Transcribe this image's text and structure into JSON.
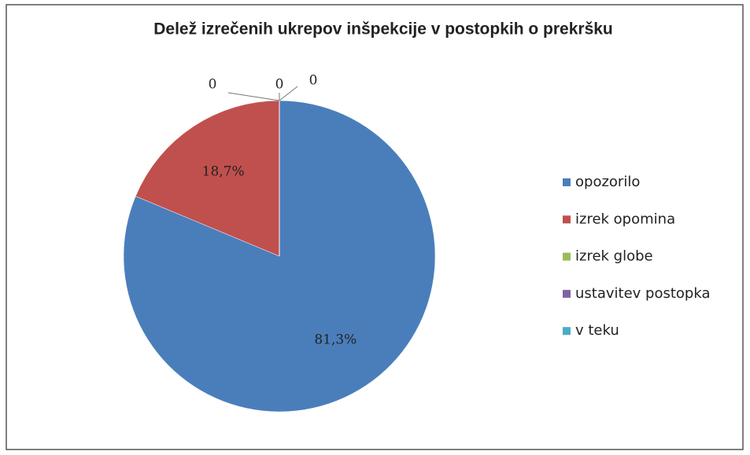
{
  "chart_data": {
    "type": "pie",
    "title": "Delež izrečenih ukrepov inšpekcije v postopkih o prekršku",
    "categories": [
      "opozorilo",
      "izrek opomina",
      "izrek globe",
      "ustavitev postopka",
      "v teku"
    ],
    "values": [
      81.3,
      18.7,
      0,
      0,
      0
    ],
    "value_labels": [
      "81,3%",
      "18,7%",
      "0",
      "0",
      "0"
    ],
    "colors": [
      "#4a7ebb",
      "#c0504d",
      "#9bbb59",
      "#8064a2",
      "#4bacc6"
    ],
    "legend": "right"
  }
}
